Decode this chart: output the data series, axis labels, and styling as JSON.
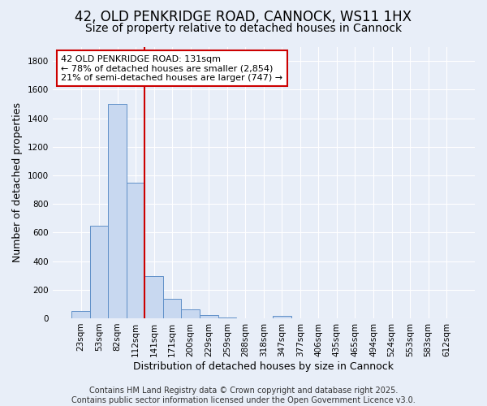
{
  "title1": "42, OLD PENKRIDGE ROAD, CANNOCK, WS11 1HX",
  "title2": "Size of property relative to detached houses in Cannock",
  "xlabel": "Distribution of detached houses by size in Cannock",
  "ylabel": "Number of detached properties",
  "bins": [
    "23sqm",
    "53sqm",
    "82sqm",
    "112sqm",
    "141sqm",
    "171sqm",
    "200sqm",
    "229sqm",
    "259sqm",
    "288sqm",
    "318sqm",
    "347sqm",
    "377sqm",
    "406sqm",
    "435sqm",
    "465sqm",
    "494sqm",
    "524sqm",
    "553sqm",
    "583sqm",
    "612sqm"
  ],
  "values": [
    50,
    650,
    1500,
    950,
    295,
    135,
    65,
    20,
    5,
    0,
    0,
    15,
    0,
    0,
    0,
    0,
    0,
    0,
    0,
    0,
    0
  ],
  "bar_color": "#c8d8f0",
  "bar_edge_color": "#6090c8",
  "vline_color": "#cc0000",
  "annotation_text": "42 OLD PENKRIDGE ROAD: 131sqm\n← 78% of detached houses are smaller (2,854)\n21% of semi-detached houses are larger (747) →",
  "annotation_box_color": "white",
  "annotation_box_edge": "#cc0000",
  "ylim": [
    0,
    1900
  ],
  "yticks": [
    0,
    200,
    400,
    600,
    800,
    1000,
    1200,
    1400,
    1600,
    1800
  ],
  "bg_color": "#e8eef8",
  "plot_bg_color": "#e8eef8",
  "grid_color": "#ffffff",
  "footer": "Contains HM Land Registry data © Crown copyright and database right 2025.\nContains public sector information licensed under the Open Government Licence v3.0.",
  "title_fontsize": 12,
  "subtitle_fontsize": 10,
  "tick_fontsize": 7.5,
  "label_fontsize": 9,
  "footer_fontsize": 7,
  "annotation_fontsize": 8
}
